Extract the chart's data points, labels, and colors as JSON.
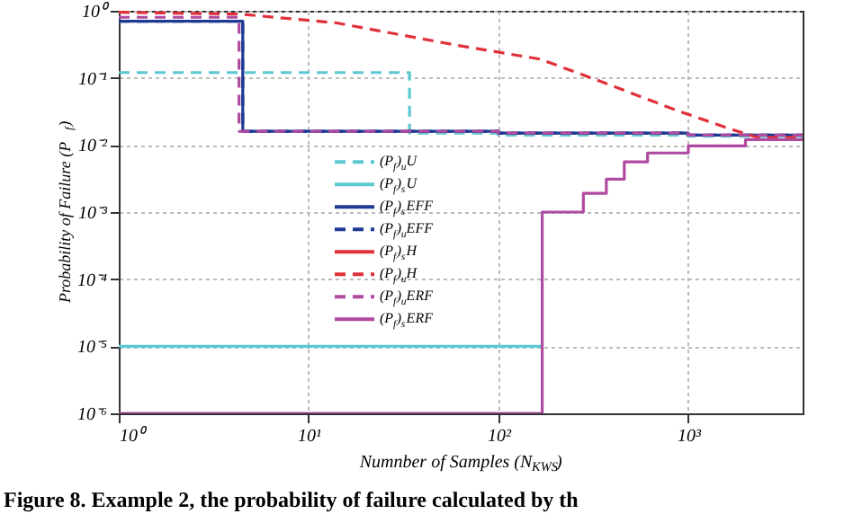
{
  "chart_data": {
    "type": "step",
    "xlabel": "Numnber of Samples (N$_{KWS}$)",
    "ylabel": "Probability of Failure (P$_{f}$)",
    "annotations": [
      "Figure 8. Example 2, the probability of failure calculated by th"
    ],
    "log": "xy",
    "grid": true,
    "legend": "center",
    "xlim": [
      1,
      4000
    ],
    "ylim": [
      1e-06,
      1
    ],
    "xticks": [
      {
        "value": 1,
        "label": "10⁰"
      },
      {
        "value": 10,
        "label": "10¹"
      },
      {
        "value": 100,
        "label": "10²"
      },
      {
        "value": 1000,
        "label": "10³"
      }
    ],
    "yticks": [
      {
        "value": 1e-06,
        "label": "10⁻⁶"
      },
      {
        "value": 1e-05,
        "label": "10⁻⁵"
      },
      {
        "value": 0.0001,
        "label": "10⁻⁴"
      },
      {
        "value": 0.001,
        "label": "10⁻³"
      },
      {
        "value": 0.01,
        "label": "10⁻²"
      },
      {
        "value": 0.1,
        "label": "10⁻¹"
      },
      {
        "value": 1,
        "label": "10⁰"
      }
    ],
    "series": [
      {
        "name": "(P$_{f}$)$_{u}$U",
        "color": "#5cc8d2",
        "line_style": "dashed",
        "x": [
          1,
          34,
          34,
          100,
          1000,
          4000
        ],
        "values": [
          0.12,
          0.12,
          0.015,
          0.014,
          0.0135,
          0.0135
        ]
      },
      {
        "name": "(P$_{f}$)$_{s}$U",
        "color": "#5cc8d2",
        "line_style": "solid",
        "x": [
          1,
          170
        ],
        "values": [
          1e-05,
          1e-05
        ]
      },
      {
        "name": "(P$_{f}$)$_{s}$EFF",
        "color": "#1f3a93",
        "line_style": "solid",
        "x": [
          1,
          4.5,
          4.5,
          100,
          1000,
          4000
        ],
        "values": [
          0.7,
          0.7,
          0.016,
          0.015,
          0.014,
          0.0135
        ]
      },
      {
        "name": "(P$_{f}$)$_{u}$EFF",
        "color": "#1f3a93",
        "line_style": "dashed",
        "x": [
          1,
          4.5,
          4.5,
          100,
          1000,
          4000
        ],
        "values": [
          0.7,
          0.7,
          0.016,
          0.015,
          0.014,
          0.0135
        ]
      },
      {
        "name": "(P$_{f}$)$_{s}$H",
        "color": "#e0303a",
        "line_style": "solid",
        "values": [
          null
        ]
      },
      {
        "name": "(P$_{f}$)$_{u}$H",
        "color": "#e0303a",
        "line_style": "dashed",
        "type": "line",
        "x": [
          1,
          4.4,
          14,
          59,
          166,
          340,
          890,
          1700,
          2300,
          4000
        ],
        "values": [
          0.95,
          0.89,
          0.66,
          0.31,
          0.19,
          0.09,
          0.032,
          0.017,
          0.013,
          0.013
        ]
      },
      {
        "name": "(P$_{f}$)$_{u}$ERF",
        "color": "#b04aa0",
        "line_style": "dashed",
        "x": [
          1,
          4.3,
          4.3,
          100,
          1000,
          4000
        ],
        "values": [
          0.8,
          0.8,
          0.016,
          0.015,
          0.014,
          0.0135
        ]
      },
      {
        "name": "(P$_{f}$)$_{s}$ERF",
        "color": "#b04aa0",
        "line_style": "solid",
        "x": [
          1,
          170,
          170,
          280,
          370,
          460,
          610,
          1000,
          2000,
          4000
        ],
        "values": [
          1e-06,
          1e-06,
          0.001,
          0.0019,
          0.0031,
          0.0056,
          0.0076,
          0.0097,
          0.012,
          0.013
        ]
      }
    ]
  }
}
